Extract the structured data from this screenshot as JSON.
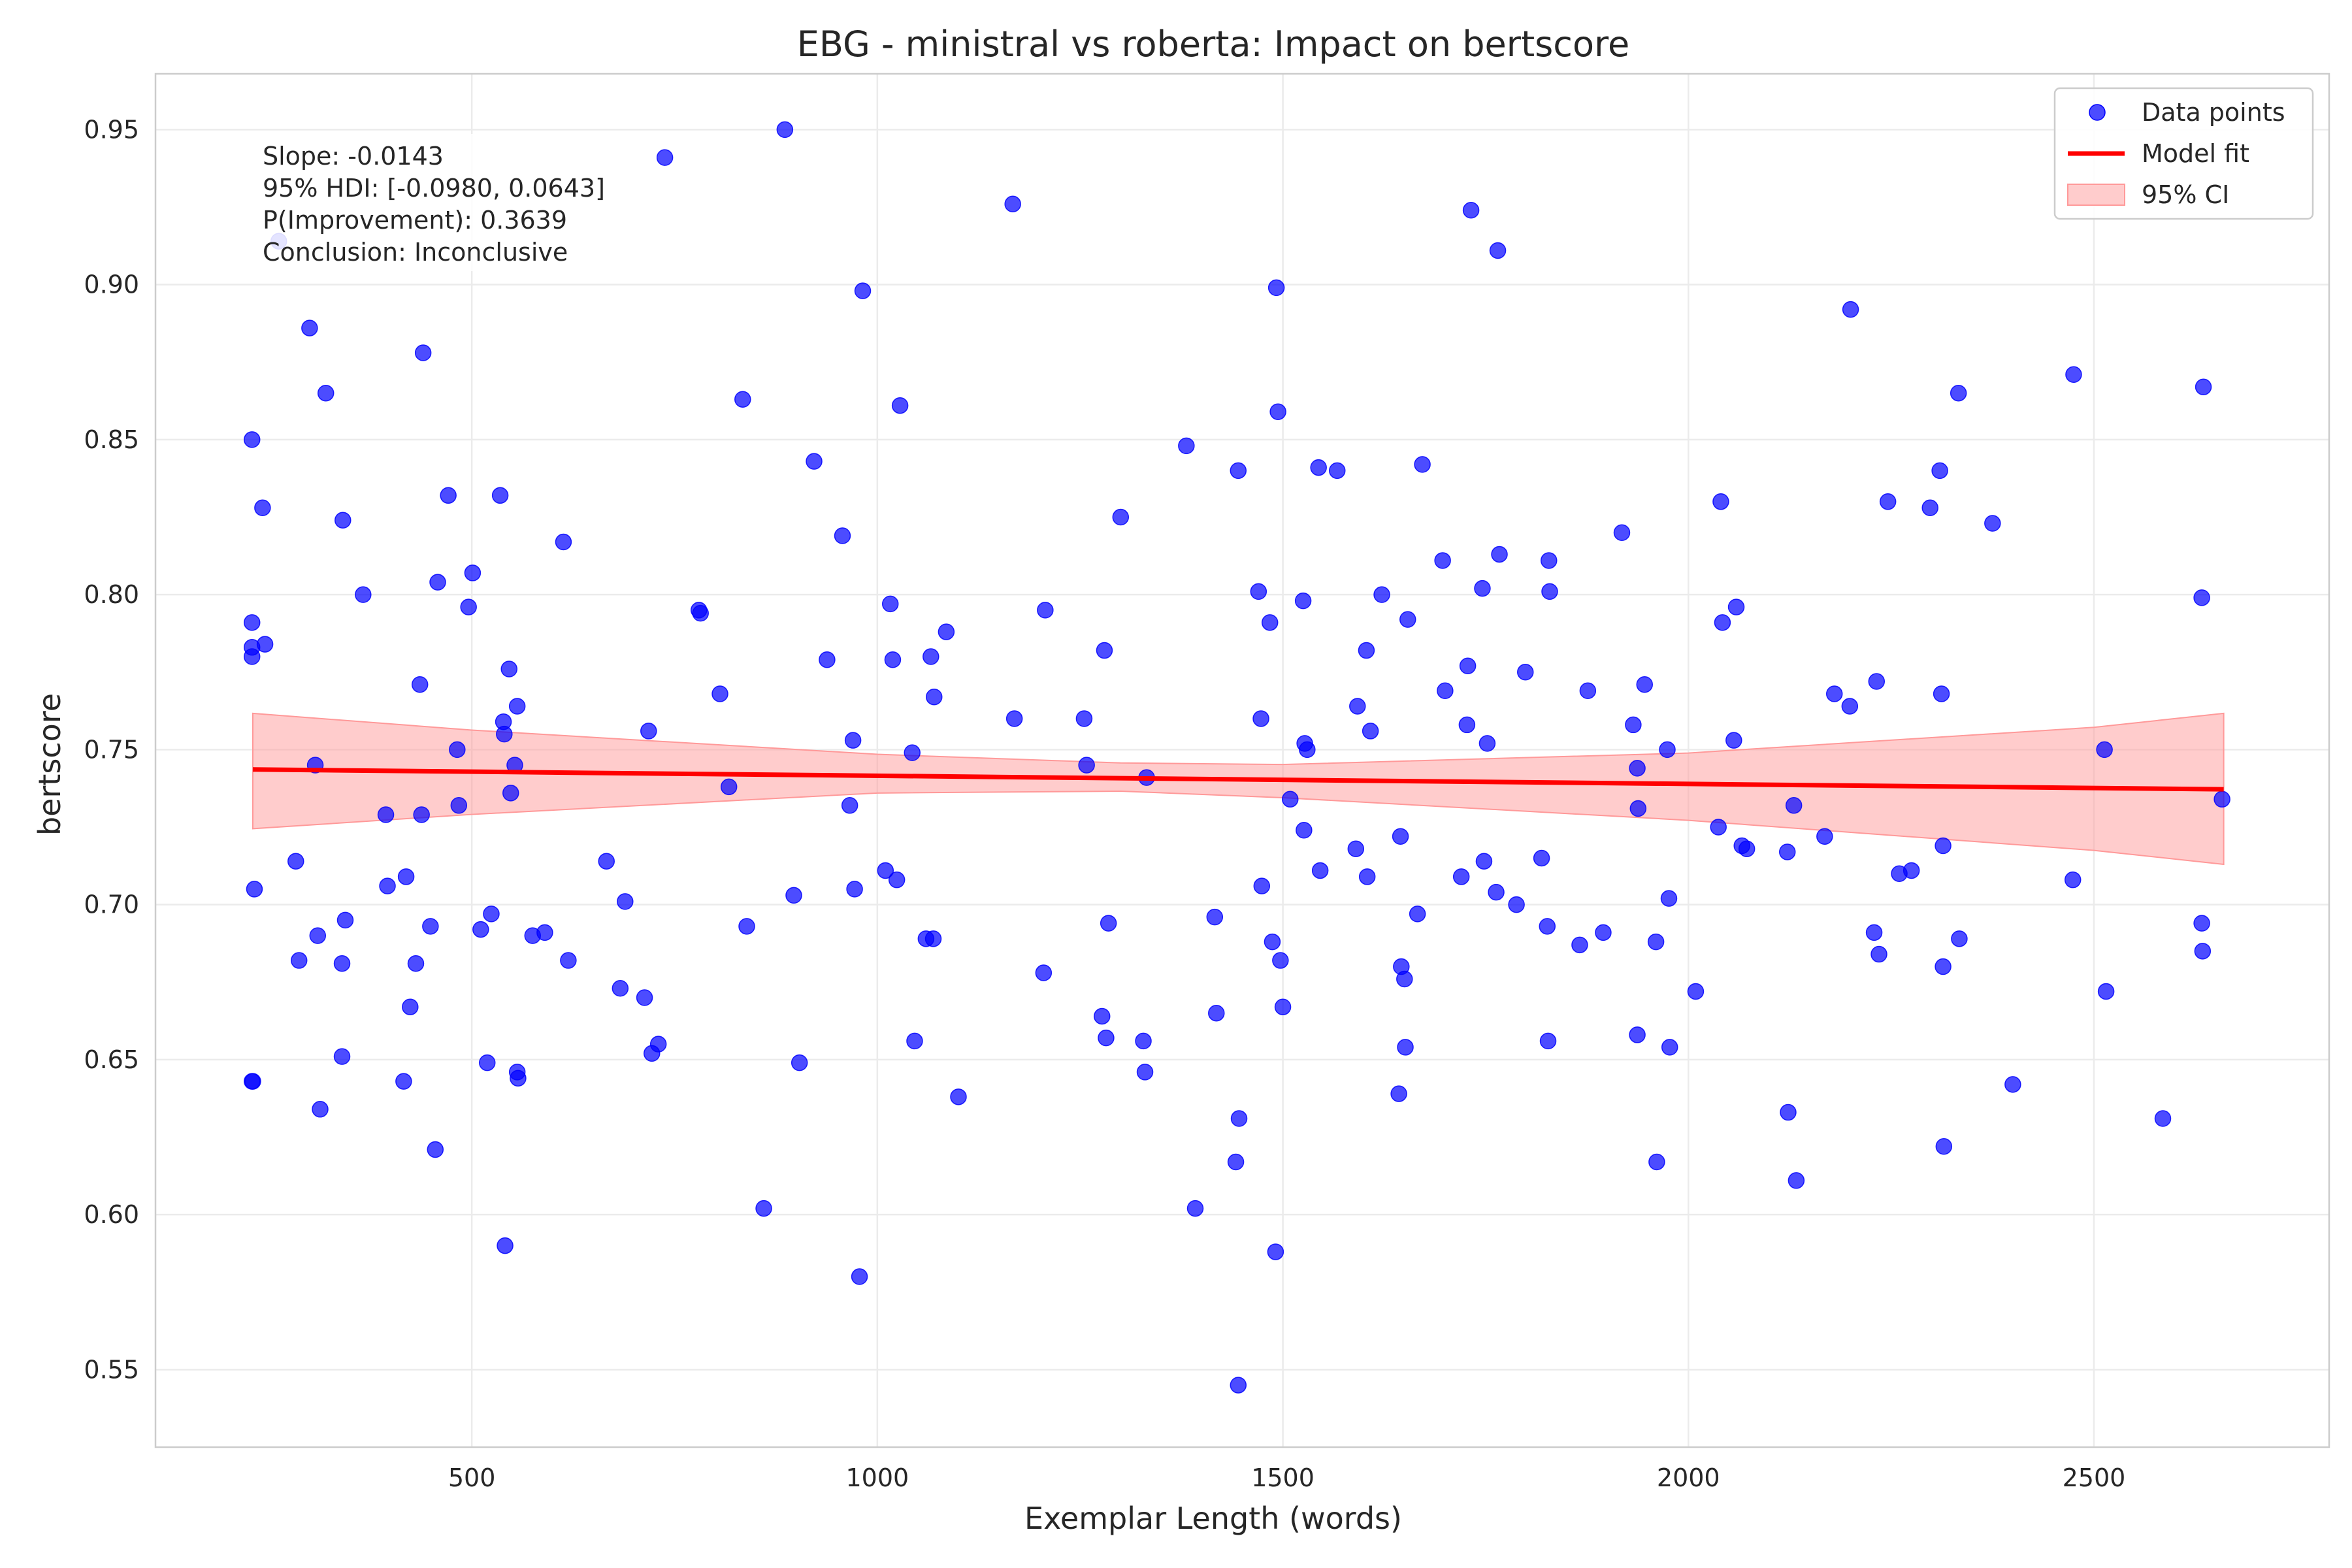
{
  "chart_data": {
    "type": "scatter",
    "title": "EBG - ministral vs roberta: Impact on bertscore",
    "xlabel": "Exemplar Length (words)",
    "ylabel": "bertscore",
    "xlim": [
      110,
      2790
    ],
    "ylim": [
      0.525,
      0.968
    ],
    "xticks": [
      500,
      1000,
      1500,
      2000,
      2500
    ],
    "xtick_labels": [
      "500",
      "1000",
      "1500",
      "2000",
      "2500"
    ],
    "yticks": [
      0.55,
      0.6,
      0.65,
      0.7,
      0.75,
      0.8,
      0.85,
      0.9,
      0.95
    ],
    "ytick_labels": [
      "0.55",
      "0.60",
      "0.65",
      "0.70",
      "0.75",
      "0.80",
      "0.85",
      "0.90",
      "0.95"
    ],
    "grid": true,
    "legend_position": "top-right",
    "legend": [
      {
        "label": "Data points",
        "kind": "marker",
        "color": "#0000ff"
      },
      {
        "label": "Model fit",
        "kind": "line",
        "color": "#ff0000"
      },
      {
        "label": "95% CI",
        "kind": "patch",
        "color": "#ffcccc"
      }
    ],
    "colors": {
      "points": "#0000ff",
      "fit": "#ff0000",
      "ci": "#ff9999"
    },
    "annotation_lines": [
      "Slope: -0.0143",
      "95% HDI: [-0.0980, 0.0643]",
      "P(Improvement): 0.3639",
      "Conclusion: Inconclusive"
    ],
    "fit_line": {
      "x": [
        230,
        2660
      ],
      "y": [
        0.7436,
        0.7372
      ]
    },
    "ci_band": {
      "x": [
        230,
        500,
        1000,
        1300,
        1500,
        2000,
        2500,
        2660
      ],
      "upper": [
        0.7617,
        0.7563,
        0.7485,
        0.7457,
        0.7452,
        0.7489,
        0.7572,
        0.7617
      ],
      "lower": [
        0.7245,
        0.7291,
        0.736,
        0.7366,
        0.7345,
        0.7272,
        0.7175,
        0.713
      ]
    },
    "series": [
      {
        "name": "Data points",
        "x": [
          229,
          229,
          229,
          229,
          232,
          242,
          245,
          230,
          229,
          262,
          283,
          287,
          300,
          307,
          310,
          313,
          320,
          340,
          341,
          344,
          340,
          366,
          394,
          396,
          416,
          419,
          424,
          431,
          436,
          438,
          440,
          449,
          455,
          458,
          471,
          482,
          484,
          496,
          501,
          511,
          519,
          524,
          535,
          539,
          540,
          541,
          546,
          548,
          553,
          556,
          556,
          557,
          575,
          590,
          613,
          619,
          666,
          683,
          689,
          713,
          718,
          722,
          730,
          738,
          780,
          782,
          806,
          817,
          834,
          839,
          860,
          886,
          897,
          904,
          922,
          938,
          957,
          966,
          970,
          972,
          978,
          982,
          1010,
          1016,
          1019,
          1024,
          1028,
          1043,
          1046,
          1060,
          1066,
          1069,
          1070,
          1085,
          1100,
          1167,
          1169,
          1205,
          1207,
          1255,
          1258,
          1277,
          1280,
          1282,
          1285,
          1300,
          1328,
          1330,
          1332,
          1381,
          1392,
          1416,
          1418,
          1442,
          1445,
          1446,
          1445,
          1470,
          1473,
          1474,
          1484,
          1487,
          1491,
          1492,
          1494,
          1497,
          1500,
          1509,
          1525,
          1526,
          1527,
          1530,
          1544,
          1546,
          1567,
          1590,
          1592,
          1603,
          1604,
          1608,
          1622,
          1643,
          1645,
          1646,
          1650,
          1651,
          1654,
          1666,
          1672,
          1697,
          1700,
          1720,
          1727,
          1728,
          1732,
          1746,
          1748,
          1752,
          1763,
          1765,
          1767,
          1788,
          1799,
          1819,
          1826,
          1827,
          1828,
          1829,
          1866,
          1876,
          1895,
          1918,
          1932,
          1937,
          1937,
          1938,
          1946,
          1960,
          1961,
          1974,
          1976,
          1977,
          2009,
          2037,
          2040,
          2042,
          2056,
          2059,
          2066,
          2072,
          2122,
          2123,
          2130,
          2133,
          2168,
          2180,
          2199,
          2200,
          2229,
          2232,
          2235,
          2246,
          2260,
          2275,
          2298,
          2310,
          2312,
          2314,
          2314,
          2315,
          2333,
          2334,
          2375,
          2400,
          2474,
          2475,
          2513,
          2515,
          2585,
          2633,
          2633,
          2634,
          2635,
          2658
        ],
        "y": [
          0.85,
          0.791,
          0.783,
          0.78,
          0.705,
          0.828,
          0.784,
          0.643,
          0.643,
          0.914,
          0.714,
          0.682,
          0.886,
          0.745,
          0.69,
          0.634,
          0.865,
          0.681,
          0.824,
          0.695,
          0.651,
          0.8,
          0.729,
          0.706,
          0.643,
          0.709,
          0.667,
          0.681,
          0.771,
          0.729,
          0.878,
          0.693,
          0.621,
          0.804,
          0.832,
          0.75,
          0.732,
          0.796,
          0.807,
          0.692,
          0.649,
          0.697,
          0.832,
          0.759,
          0.755,
          0.59,
          0.776,
          0.736,
          0.745,
          0.764,
          0.646,
          0.644,
          0.69,
          0.691,
          0.817,
          0.682,
          0.714,
          0.673,
          0.701,
          0.67,
          0.756,
          0.652,
          0.655,
          0.941,
          0.795,
          0.794,
          0.768,
          0.738,
          0.863,
          0.693,
          0.602,
          0.95,
          0.703,
          0.649,
          0.843,
          0.779,
          0.819,
          0.732,
          0.753,
          0.705,
          0.58,
          0.898,
          0.711,
          0.797,
          0.779,
          0.708,
          0.861,
          0.749,
          0.656,
          0.689,
          0.78,
          0.689,
          0.767,
          0.788,
          0.638,
          0.926,
          0.76,
          0.678,
          0.795,
          0.76,
          0.745,
          0.664,
          0.782,
          0.657,
          0.694,
          0.825,
          0.656,
          0.646,
          0.741,
          0.848,
          0.602,
          0.696,
          0.665,
          0.617,
          0.545,
          0.631,
          0.84,
          0.801,
          0.76,
          0.706,
          0.791,
          0.688,
          0.588,
          0.899,
          0.859,
          0.682,
          0.667,
          0.734,
          0.798,
          0.724,
          0.752,
          0.75,
          0.841,
          0.711,
          0.84,
          0.718,
          0.764,
          0.782,
          0.709,
          0.756,
          0.8,
          0.639,
          0.722,
          0.68,
          0.676,
          0.654,
          0.792,
          0.697,
          0.842,
          0.811,
          0.769,
          0.709,
          0.758,
          0.777,
          0.924,
          0.802,
          0.714,
          0.752,
          0.704,
          0.911,
          0.813,
          0.7,
          0.775,
          0.715,
          0.693,
          0.656,
          0.811,
          0.801,
          0.687,
          0.769,
          0.691,
          0.82,
          0.758,
          0.658,
          0.744,
          0.731,
          0.771,
          0.688,
          0.617,
          0.75,
          0.702,
          0.654,
          0.672,
          0.725,
          0.83,
          0.791,
          0.753,
          0.796,
          0.719,
          0.718,
          0.717,
          0.633,
          0.732,
          0.611,
          0.722,
          0.768,
          0.764,
          0.892,
          0.691,
          0.772,
          0.684,
          0.83,
          0.71,
          0.711,
          0.828,
          0.84,
          0.768,
          0.719,
          0.68,
          0.622,
          0.865,
          0.689,
          0.823,
          0.642,
          0.708,
          0.871,
          0.75,
          0.672,
          0.631,
          0.799,
          0.694,
          0.685,
          0.867,
          0.734
        ]
      }
    ]
  }
}
